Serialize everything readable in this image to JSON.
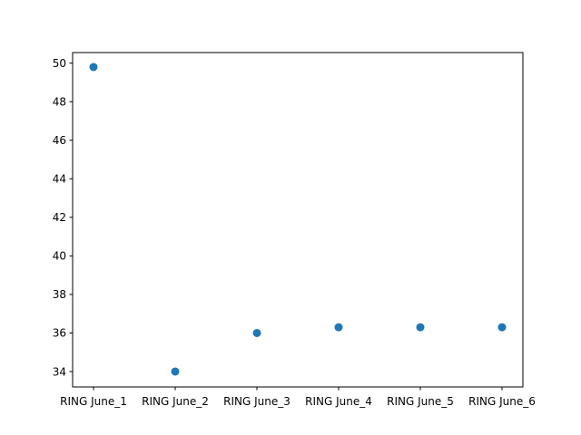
{
  "chart_data": {
    "type": "scatter",
    "title": "",
    "xlabel": "",
    "ylabel": "",
    "categories": [
      "RING June_1",
      "RING June_2",
      "RING June_3",
      "RING June_4",
      "RING June_5",
      "RING June_6"
    ],
    "series": [
      {
        "values": [
          49.8,
          34.0,
          36.0,
          36.3,
          36.3,
          36.3
        ]
      }
    ],
    "ylim": [
      33.2,
      50.55
    ],
    "yticks": [
      "34",
      "36",
      "38",
      "40",
      "42",
      "44",
      "46",
      "48",
      "50"
    ],
    "grid": false,
    "legend": "none",
    "marker_color": "#1f77b4"
  }
}
